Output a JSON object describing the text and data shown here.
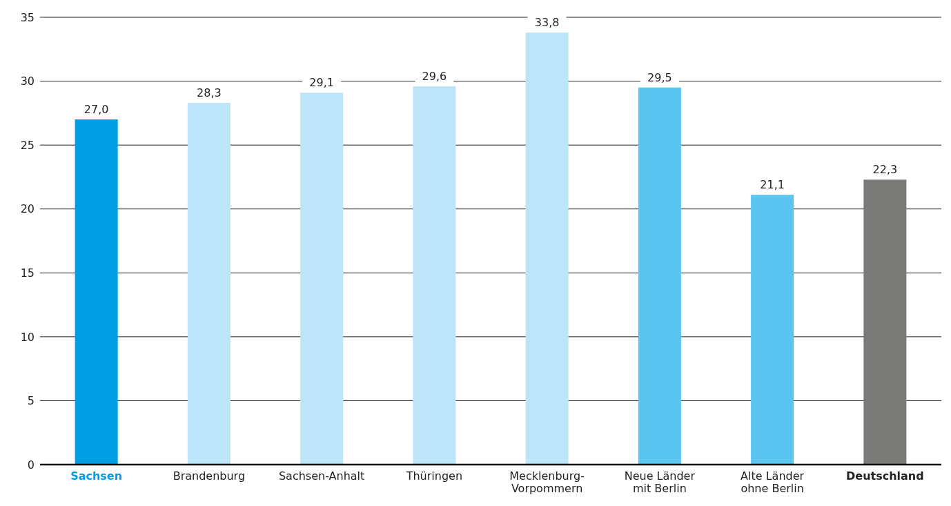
{
  "chart_data": {
    "type": "bar",
    "categories": [
      "Sachsen",
      "Brandenburg",
      "Sachsen-Anhalt",
      "Thüringen",
      "Mecklenburg-\nVorpommern",
      "Neue Länder\nmit Berlin",
      "Alte Länder\nohne Berlin",
      "Deutschland"
    ],
    "values": [
      27.0,
      28.3,
      29.1,
      29.6,
      33.8,
      29.5,
      21.1,
      22.3
    ],
    "value_labels": [
      "27,0",
      "28,3",
      "29,1",
      "29,6",
      "33,8",
      "29,5",
      "21,1",
      "22,3"
    ],
    "colors": [
      "#009fe3",
      "#bde5f9",
      "#bde5f9",
      "#bde5f9",
      "#bde5f9",
      "#5bc5f2",
      "#5bc5f2",
      "#7a7a78"
    ],
    "ylim": [
      0,
      35
    ],
    "yticks": [
      0,
      5,
      10,
      15,
      20,
      25,
      30,
      35
    ],
    "grid": "y"
  }
}
